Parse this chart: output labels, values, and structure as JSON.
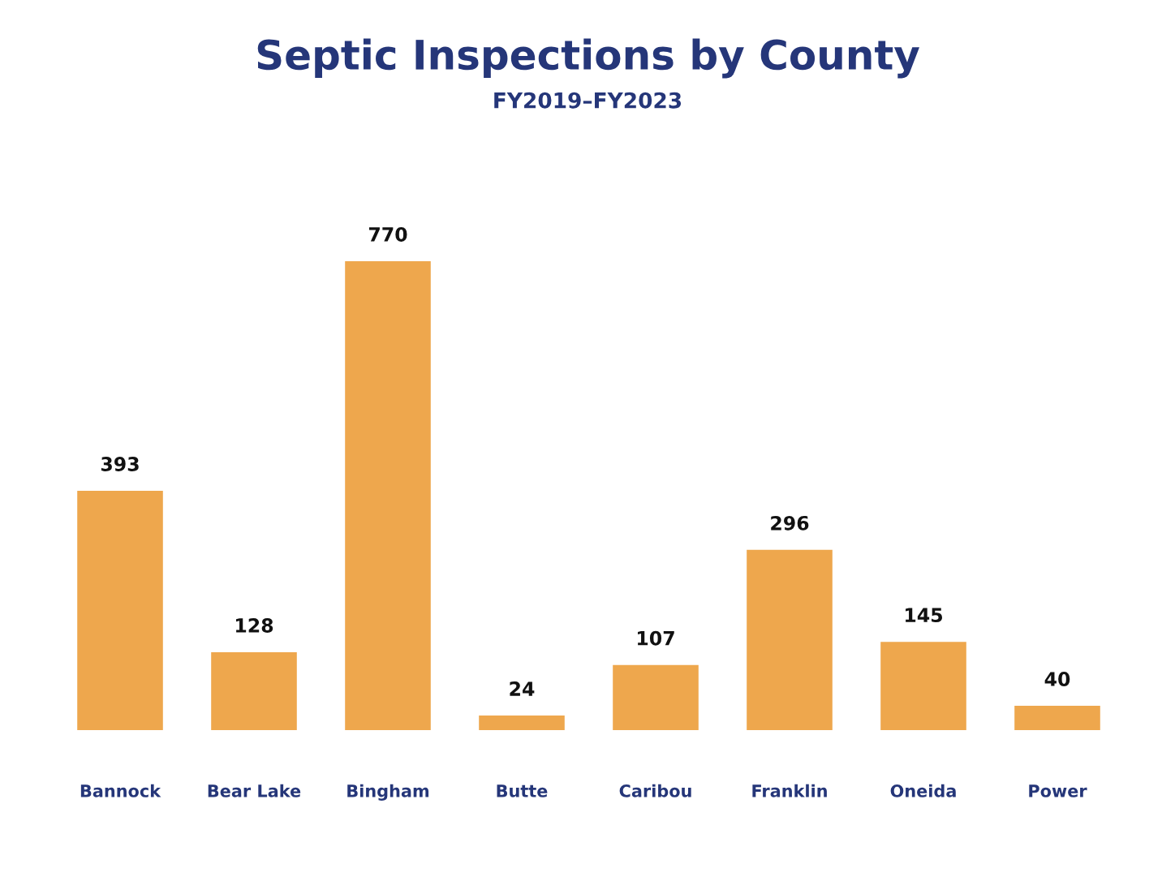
{
  "chart_data": {
    "type": "bar",
    "title": "Septic Inspections by County",
    "subtitle": "FY2019–FY2023",
    "categories": [
      "Bannock",
      "Bear Lake",
      "Bingham",
      "Butte",
      "Caribou",
      "Franklin",
      "Oneida",
      "Power"
    ],
    "values": [
      393,
      128,
      770,
      24,
      107,
      296,
      145,
      40
    ],
    "color": "#eea74d",
    "data_labels": true,
    "grid": false,
    "legend": false,
    "tick_labels": "x"
  }
}
